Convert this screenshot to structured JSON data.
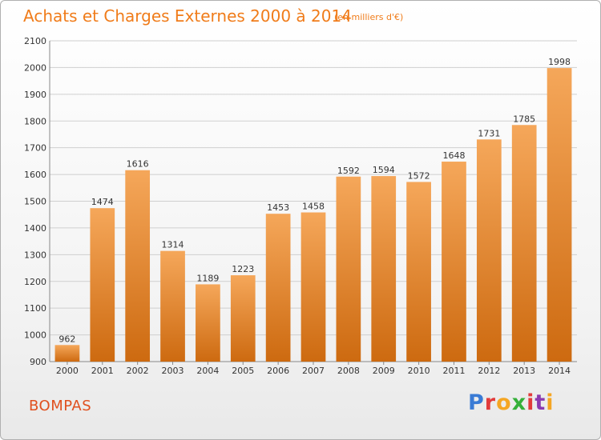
{
  "header": {
    "title": "Achats et Charges Externes 2000 à 2014",
    "subtitle": "(en milliers d'€)"
  },
  "footer": {
    "town": "BOMPAS",
    "logo": "Proxiti",
    "logo_colors": [
      "#3a7bd5",
      "#e23b3b",
      "#f5a623",
      "#35b03a",
      "#e23b3b",
      "#8b3ab0",
      "#f5a623"
    ]
  },
  "colors": {
    "bar_top": "#f5a75a",
    "bar_bottom": "#cd6a10",
    "text": "#333333",
    "title": "#f07c1a",
    "grid": "#cfcfcf"
  },
  "chart_data": {
    "type": "bar",
    "title": "Achats et Charges Externes 2000 à 2014",
    "subtitle": "(en milliers d'€)",
    "xlabel": "",
    "ylabel": "",
    "categories": [
      "2000",
      "2001",
      "2002",
      "2003",
      "2004",
      "2005",
      "2006",
      "2007",
      "2008",
      "2009",
      "2010",
      "2011",
      "2012",
      "2013",
      "2014"
    ],
    "values": [
      962,
      1474,
      1616,
      1314,
      1189,
      1223,
      1453,
      1458,
      1592,
      1594,
      1572,
      1648,
      1731,
      1785,
      1998
    ],
    "ylim": [
      900,
      2100
    ],
    "yticks": [
      900,
      1000,
      1100,
      1200,
      1300,
      1400,
      1500,
      1600,
      1700,
      1800,
      1900,
      2000,
      2100
    ],
    "grid": "horizontal",
    "data_labels": true
  }
}
